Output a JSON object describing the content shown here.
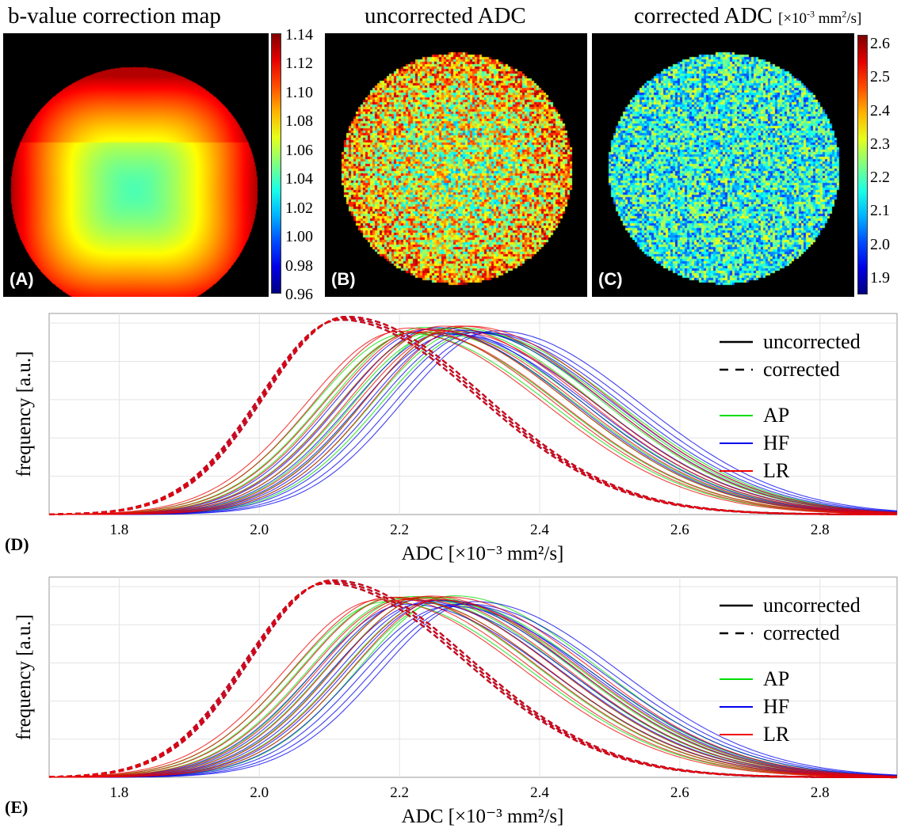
{
  "top_row": {
    "titles": {
      "a": "b-value correction map",
      "b": "uncorrected ADC",
      "c": "corrected ADC",
      "c_unit": "[×10",
      "c_unit_exp": "-3",
      "c_unit_rest": " mm",
      "c_unit_exp2": "2",
      "c_unit_end": "/s]"
    },
    "tags": {
      "a": "(A)",
      "b": "(B)",
      "c": "(C)"
    },
    "colorbar_a_ticks": [
      "1.14",
      "1.12",
      "1.10",
      "1.08",
      "1.06",
      "1.04",
      "1.02",
      "1.00",
      "0.98",
      "0.96"
    ],
    "colorbar_c_ticks": [
      "2.6",
      "2.5",
      "2.4",
      "2.3",
      "2.2",
      "2.1",
      "2.0",
      "1.9"
    ],
    "colormap": "jet"
  },
  "chart_data": [
    {
      "type": "line",
      "panel": "(D)",
      "xlabel": "ADC [×10⁻³ mm²/s]",
      "ylabel": "frequency [a.u.]",
      "xlim": [
        1.7,
        2.91
      ],
      "xticks": [
        "1.8",
        "2.0",
        "2.2",
        "2.4",
        "2.6",
        "2.8"
      ],
      "grid": true,
      "legend": {
        "position": "top-right",
        "styles": [
          {
            "label": "uncorrected",
            "dash": "solid"
          },
          {
            "label": "corrected",
            "dash": "dashed"
          }
        ],
        "directions": [
          {
            "label": "AP",
            "color": "#00dd00"
          },
          {
            "label": "HF",
            "color": "#0000ee"
          },
          {
            "label": "LR",
            "color": "#ee0000"
          }
        ]
      },
      "series": [
        {
          "direction": "AP",
          "correction": "uncorrected",
          "peak_adc": 2.26,
          "peak_freq": 0.95
        },
        {
          "direction": "HF",
          "correction": "uncorrected",
          "peak_adc": 2.29,
          "peak_freq": 0.94
        },
        {
          "direction": "LR",
          "correction": "uncorrected",
          "peak_adc": 2.25,
          "peak_freq": 0.95
        },
        {
          "direction": "AP",
          "correction": "corrected",
          "peak_adc": 2.12,
          "peak_freq": 1.0
        },
        {
          "direction": "HF",
          "correction": "corrected",
          "peak_adc": 2.12,
          "peak_freq": 1.0
        },
        {
          "direction": "LR",
          "correction": "corrected",
          "peak_adc": 2.12,
          "peak_freq": 1.0
        }
      ]
    },
    {
      "type": "line",
      "panel": "(E)",
      "xlabel": "ADC [×10⁻³ mm²/s]",
      "ylabel": "frequency [a.u.]",
      "xlim": [
        1.7,
        2.91
      ],
      "xticks": [
        "1.8",
        "2.0",
        "2.2",
        "2.4",
        "2.6",
        "2.8"
      ],
      "grid": true,
      "legend": {
        "position": "top-right",
        "styles": [
          {
            "label": "uncorrected",
            "dash": "solid"
          },
          {
            "label": "corrected",
            "dash": "dashed"
          }
        ],
        "directions": [
          {
            "label": "AP",
            "color": "#00dd00"
          },
          {
            "label": "HF",
            "color": "#0000ee"
          },
          {
            "label": "LR",
            "color": "#ee0000"
          }
        ]
      },
      "series": [
        {
          "direction": "AP",
          "correction": "uncorrected",
          "peak_adc": 2.23,
          "peak_freq": 0.92
        },
        {
          "direction": "HF",
          "correction": "uncorrected",
          "peak_adc": 2.26,
          "peak_freq": 0.9
        },
        {
          "direction": "LR",
          "correction": "uncorrected",
          "peak_adc": 2.22,
          "peak_freq": 0.92
        },
        {
          "direction": "AP",
          "correction": "corrected",
          "peak_adc": 2.1,
          "peak_freq": 1.0
        },
        {
          "direction": "HF",
          "correction": "corrected",
          "peak_adc": 2.1,
          "peak_freq": 1.0
        },
        {
          "direction": "LR",
          "correction": "corrected",
          "peak_adc": 2.1,
          "peak_freq": 1.0
        }
      ]
    }
  ]
}
